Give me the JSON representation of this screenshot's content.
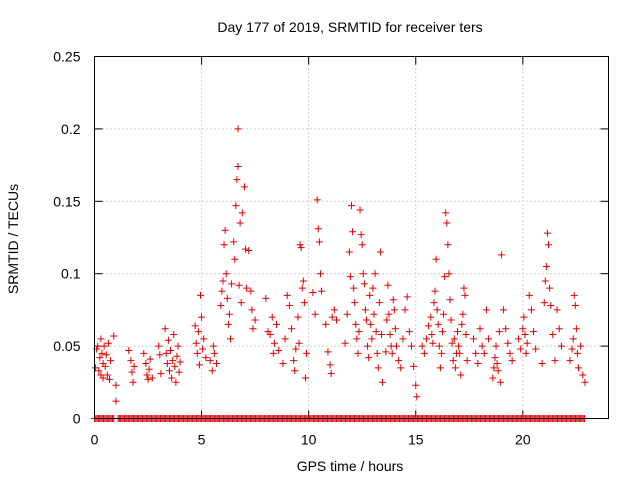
{
  "chart_data": {
    "type": "scatter",
    "title": "Day 177 of 2019, SRMTID for receiver ters",
    "xlabel": "GPS time / hours",
    "ylabel": "SRMTID / TECUs",
    "xlim": [
      0,
      24
    ],
    "ylim": [
      0,
      0.25
    ],
    "xticks": [
      0,
      5,
      10,
      15,
      20
    ],
    "xtick_labels": [
      "0",
      "5",
      "10",
      "15",
      "20"
    ],
    "yticks": [
      0,
      0.05,
      0.1,
      0.15,
      0.2,
      0.25
    ],
    "ytick_labels": [
      "0",
      "0.05",
      "0.1",
      "0.15",
      "0.2",
      "0.25"
    ],
    "grid": true,
    "marker": "+",
    "color": "#e00000",
    "series": [
      {
        "name": "SRMTID",
        "points": [
          [
            0.05,
            0.035
          ],
          [
            0.1,
            0.048
          ],
          [
            0.15,
            0.05
          ],
          [
            0.2,
            0.033
          ],
          [
            0.25,
            0.042
          ],
          [
            0.3,
            0.03
          ],
          [
            0.3,
            0.055
          ],
          [
            0.35,
            0.045
          ],
          [
            0.4,
            0.038
          ],
          [
            0.4,
            0.028
          ],
          [
            0.45,
            0.05
          ],
          [
            0.5,
            0.036
          ],
          [
            0.55,
            0.044
          ],
          [
            0.6,
            0.03
          ],
          [
            0.65,
            0.052
          ],
          [
            0.7,
            0.027
          ],
          [
            0.75,
            0.04
          ],
          [
            0.9,
            0.057
          ],
          [
            1.0,
            0.023
          ],
          [
            1.0,
            0.012
          ],
          [
            1.6,
            0.047
          ],
          [
            1.7,
            0.04
          ],
          [
            1.75,
            0.032
          ],
          [
            1.8,
            0.025
          ],
          [
            1.85,
            0.036
          ],
          [
            2.3,
            0.045
          ],
          [
            2.4,
            0.038
          ],
          [
            2.45,
            0.03
          ],
          [
            2.5,
            0.027
          ],
          [
            2.55,
            0.034
          ],
          [
            2.6,
            0.041
          ],
          [
            2.7,
            0.028
          ],
          [
            3.0,
            0.05
          ],
          [
            3.05,
            0.044
          ],
          [
            3.1,
            0.031
          ],
          [
            3.3,
            0.062
          ],
          [
            3.35,
            0.045
          ],
          [
            3.4,
            0.038
          ],
          [
            3.45,
            0.054
          ],
          [
            3.5,
            0.033
          ],
          [
            3.55,
            0.047
          ],
          [
            3.6,
            0.028
          ],
          [
            3.65,
            0.04
          ],
          [
            3.7,
            0.058
          ],
          [
            3.75,
            0.036
          ],
          [
            3.8,
            0.025
          ],
          [
            3.85,
            0.043
          ],
          [
            3.9,
            0.05
          ],
          [
            3.95,
            0.032
          ],
          [
            4.0,
            0.039
          ],
          [
            4.7,
            0.064
          ],
          [
            4.75,
            0.052
          ],
          [
            4.8,
            0.045
          ],
          [
            4.85,
            0.06
          ],
          [
            4.9,
            0.037
          ],
          [
            4.95,
            0.085
          ],
          [
            5.0,
            0.07
          ],
          [
            5.05,
            0.048
          ],
          [
            5.1,
            0.055
          ],
          [
            5.2,
            0.042
          ],
          [
            5.4,
            0.04
          ],
          [
            5.5,
            0.033
          ],
          [
            5.55,
            0.05
          ],
          [
            5.6,
            0.045
          ],
          [
            5.7,
            0.038
          ],
          [
            5.9,
            0.078
          ],
          [
            5.95,
            0.088
          ],
          [
            6.0,
            0.095
          ],
          [
            6.05,
            0.12
          ],
          [
            6.1,
            0.13
          ],
          [
            6.15,
            0.1
          ],
          [
            6.2,
            0.083
          ],
          [
            6.25,
            0.065
          ],
          [
            6.3,
            0.072
          ],
          [
            6.35,
            0.055
          ],
          [
            6.4,
            0.093
          ],
          [
            6.5,
            0.122
          ],
          [
            6.55,
            0.11
          ],
          [
            6.6,
            0.147
          ],
          [
            6.65,
            0.165
          ],
          [
            6.7,
            0.174
          ],
          [
            6.7,
            0.2
          ],
          [
            6.75,
            0.092
          ],
          [
            6.8,
            0.135
          ],
          [
            6.85,
            0.08
          ],
          [
            6.9,
            0.142
          ],
          [
            7.0,
            0.16
          ],
          [
            7.05,
            0.117
          ],
          [
            7.1,
            0.09
          ],
          [
            7.2,
            0.116
          ],
          [
            7.3,
            0.088
          ],
          [
            7.35,
            0.075
          ],
          [
            7.4,
            0.062
          ],
          [
            7.5,
            0.068
          ],
          [
            8.0,
            0.083
          ],
          [
            8.1,
            0.06
          ],
          [
            8.2,
            0.058
          ],
          [
            8.3,
            0.07
          ],
          [
            8.35,
            0.045
          ],
          [
            8.4,
            0.052
          ],
          [
            8.5,
            0.065
          ],
          [
            8.6,
            0.047
          ],
          [
            8.8,
            0.038
          ],
          [
            8.9,
            0.055
          ],
          [
            9.0,
            0.085
          ],
          [
            9.1,
            0.078
          ],
          [
            9.2,
            0.062
          ],
          [
            9.3,
            0.04
          ],
          [
            9.35,
            0.033
          ],
          [
            9.4,
            0.048
          ],
          [
            9.5,
            0.07
          ],
          [
            9.55,
            0.052
          ],
          [
            9.6,
            0.12
          ],
          [
            9.65,
            0.118
          ],
          [
            9.7,
            0.09
          ],
          [
            9.75,
            0.095
          ],
          [
            9.8,
            0.08
          ],
          [
            9.85,
            0.028
          ],
          [
            9.9,
            0.045
          ],
          [
            10.2,
            0.087
          ],
          [
            10.3,
            0.072
          ],
          [
            10.4,
            0.151
          ],
          [
            10.45,
            0.131
          ],
          [
            10.5,
            0.122
          ],
          [
            10.55,
            0.1
          ],
          [
            10.6,
            0.088
          ],
          [
            10.8,
            0.065
          ],
          [
            10.9,
            0.046
          ],
          [
            11.0,
            0.037
          ],
          [
            11.05,
            0.031
          ],
          [
            11.1,
            0.07
          ],
          [
            11.2,
            0.075
          ],
          [
            11.3,
            0.068
          ],
          [
            11.7,
            0.052
          ],
          [
            11.8,
            0.072
          ],
          [
            11.9,
            0.115
          ],
          [
            11.95,
            0.098
          ],
          [
            12.0,
            0.147
          ],
          [
            12.05,
            0.129
          ],
          [
            12.1,
            0.09
          ],
          [
            12.15,
            0.08
          ],
          [
            12.2,
            0.065
          ],
          [
            12.25,
            0.055
          ],
          [
            12.3,
            0.045
          ],
          [
            12.35,
            0.06
          ],
          [
            12.4,
            0.144
          ],
          [
            12.45,
            0.127
          ],
          [
            12.5,
            0.12
          ],
          [
            12.55,
            0.1
          ],
          [
            12.6,
            0.093
          ],
          [
            12.65,
            0.075
          ],
          [
            12.7,
            0.068
          ],
          [
            12.75,
            0.05
          ],
          [
            12.8,
            0.042
          ],
          [
            12.85,
            0.085
          ],
          [
            12.9,
            0.065
          ],
          [
            12.95,
            0.055
          ],
          [
            13.0,
            0.09
          ],
          [
            13.05,
            0.072
          ],
          [
            13.1,
            0.1
          ],
          [
            13.15,
            0.06
          ],
          [
            13.2,
            0.045
          ],
          [
            13.25,
            0.035
          ],
          [
            13.3,
            0.08
          ],
          [
            13.35,
            0.115
          ],
          [
            13.4,
            0.058
          ],
          [
            13.45,
            0.025
          ],
          [
            13.6,
            0.046
          ],
          [
            13.65,
            0.068
          ],
          [
            13.7,
            0.092
          ],
          [
            13.75,
            0.072
          ],
          [
            13.8,
            0.058
          ],
          [
            13.85,
            0.05
          ],
          [
            13.9,
            0.045
          ],
          [
            13.95,
            0.082
          ],
          [
            14.0,
            0.075
          ],
          [
            14.05,
            0.062
          ],
          [
            14.1,
            0.05
          ],
          [
            14.2,
            0.04
          ],
          [
            14.3,
            0.035
          ],
          [
            14.4,
            0.055
          ],
          [
            14.5,
            0.075
          ],
          [
            14.6,
            0.084
          ],
          [
            14.7,
            0.06
          ],
          [
            14.8,
            0.05
          ],
          [
            14.9,
            0.036
          ],
          [
            15.0,
            0.023
          ],
          [
            15.05,
            0.015
          ],
          [
            15.3,
            0.05
          ],
          [
            15.4,
            0.045
          ],
          [
            15.5,
            0.055
          ],
          [
            15.6,
            0.064
          ],
          [
            15.7,
            0.07
          ],
          [
            15.75,
            0.058
          ],
          [
            15.8,
            0.052
          ],
          [
            15.85,
            0.08
          ],
          [
            15.9,
            0.088
          ],
          [
            15.95,
            0.11
          ],
          [
            16.0,
            0.075
          ],
          [
            16.05,
            0.065
          ],
          [
            16.1,
            0.05
          ],
          [
            16.15,
            0.035
          ],
          [
            16.2,
            0.045
          ],
          [
            16.25,
            0.06
          ],
          [
            16.3,
            0.072
          ],
          [
            16.35,
            0.098
          ],
          [
            16.4,
            0.142
          ],
          [
            16.45,
            0.135
          ],
          [
            16.5,
            0.12
          ],
          [
            16.55,
            0.1
          ],
          [
            16.6,
            0.082
          ],
          [
            16.65,
            0.068
          ],
          [
            16.7,
            0.052
          ],
          [
            16.75,
            0.04
          ],
          [
            16.8,
            0.055
          ],
          [
            16.85,
            0.035
          ],
          [
            16.9,
            0.045
          ],
          [
            16.95,
            0.06
          ],
          [
            17.0,
            0.05
          ],
          [
            17.05,
            0.045
          ],
          [
            17.1,
            0.03
          ],
          [
            17.15,
            0.065
          ],
          [
            17.2,
            0.072
          ],
          [
            17.25,
            0.09
          ],
          [
            17.3,
            0.085
          ],
          [
            17.35,
            0.058
          ],
          [
            17.4,
            0.04
          ],
          [
            17.7,
            0.055
          ],
          [
            17.8,
            0.045
          ],
          [
            17.9,
            0.038
          ],
          [
            18.0,
            0.062
          ],
          [
            18.1,
            0.05
          ],
          [
            18.2,
            0.045
          ],
          [
            18.3,
            0.075
          ],
          [
            18.4,
            0.055
          ],
          [
            18.6,
            0.028
          ],
          [
            18.65,
            0.035
          ],
          [
            18.7,
            0.042
          ],
          [
            18.75,
            0.05
          ],
          [
            18.8,
            0.038
          ],
          [
            18.85,
            0.033
          ],
          [
            18.9,
            0.06
          ],
          [
            18.95,
            0.025
          ],
          [
            19.0,
            0.113
          ],
          [
            19.1,
            0.075
          ],
          [
            19.2,
            0.062
          ],
          [
            19.3,
            0.052
          ],
          [
            19.4,
            0.045
          ],
          [
            19.5,
            0.04
          ],
          [
            19.8,
            0.055
          ],
          [
            19.9,
            0.048
          ],
          [
            20.0,
            0.062
          ],
          [
            20.05,
            0.07
          ],
          [
            20.1,
            0.058
          ],
          [
            20.15,
            0.045
          ],
          [
            20.2,
            0.052
          ],
          [
            20.3,
            0.085
          ],
          [
            20.4,
            0.075
          ],
          [
            20.5,
            0.06
          ],
          [
            20.6,
            0.048
          ],
          [
            20.9,
            0.038
          ],
          [
            21.0,
            0.08
          ],
          [
            21.05,
            0.095
          ],
          [
            21.1,
            0.105
          ],
          [
            21.15,
            0.128
          ],
          [
            21.2,
            0.12
          ],
          [
            21.25,
            0.09
          ],
          [
            21.3,
            0.078
          ],
          [
            21.4,
            0.058
          ],
          [
            21.5,
            0.04
          ],
          [
            21.6,
            0.075
          ],
          [
            21.7,
            0.062
          ],
          [
            21.8,
            0.05
          ],
          [
            22.2,
            0.04
          ],
          [
            22.3,
            0.048
          ],
          [
            22.35,
            0.055
          ],
          [
            22.4,
            0.085
          ],
          [
            22.45,
            0.078
          ],
          [
            22.5,
            0.062
          ],
          [
            22.55,
            0.045
          ],
          [
            22.6,
            0.035
          ],
          [
            22.7,
            0.05
          ],
          [
            22.8,
            0.03
          ],
          [
            22.9,
            0.025
          ]
        ]
      }
    ]
  }
}
